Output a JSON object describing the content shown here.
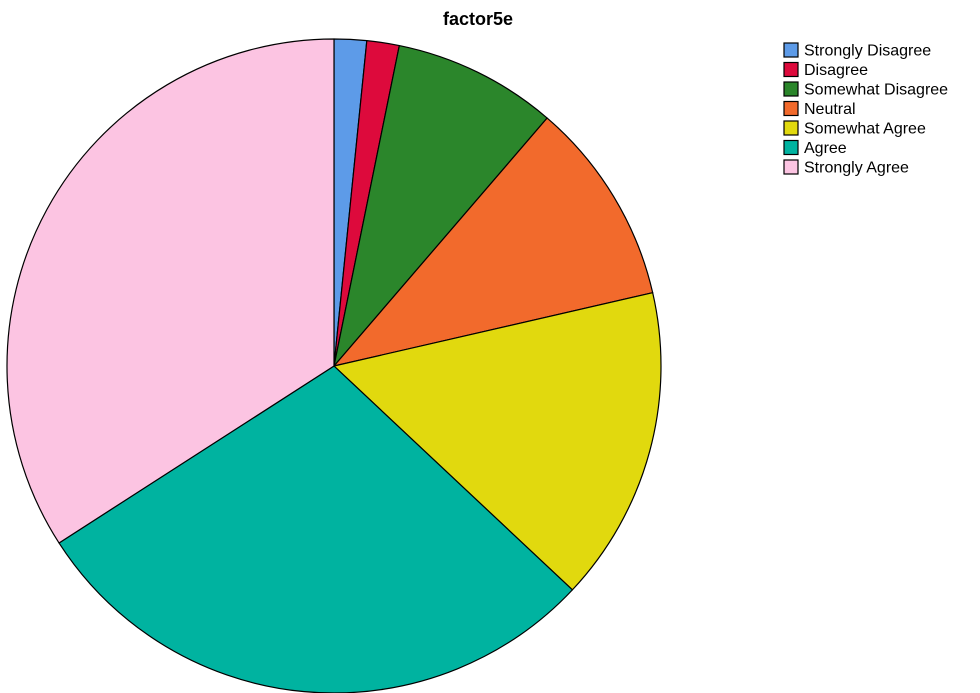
{
  "chart_data": {
    "type": "pie",
    "title": "factor5e",
    "categories": [
      "Strongly Disagree",
      "Disagree",
      "Somewhat Disagree",
      "Neutral",
      "Somewhat Agree",
      "Agree",
      "Strongly Agree"
    ],
    "values": [
      1.6,
      1.6,
      8.1,
      10.1,
      15.6,
      28.9,
      34.1
    ],
    "unit": "percent",
    "colors": [
      "#5d9be8",
      "#dd0a3c",
      "#2b862b",
      "#f26a2c",
      "#e1d90e",
      "#00b3a0",
      "#fcc4e2"
    ],
    "start_angle": "12 o'clock",
    "direction": "clockwise",
    "legend_position": "top-right"
  }
}
